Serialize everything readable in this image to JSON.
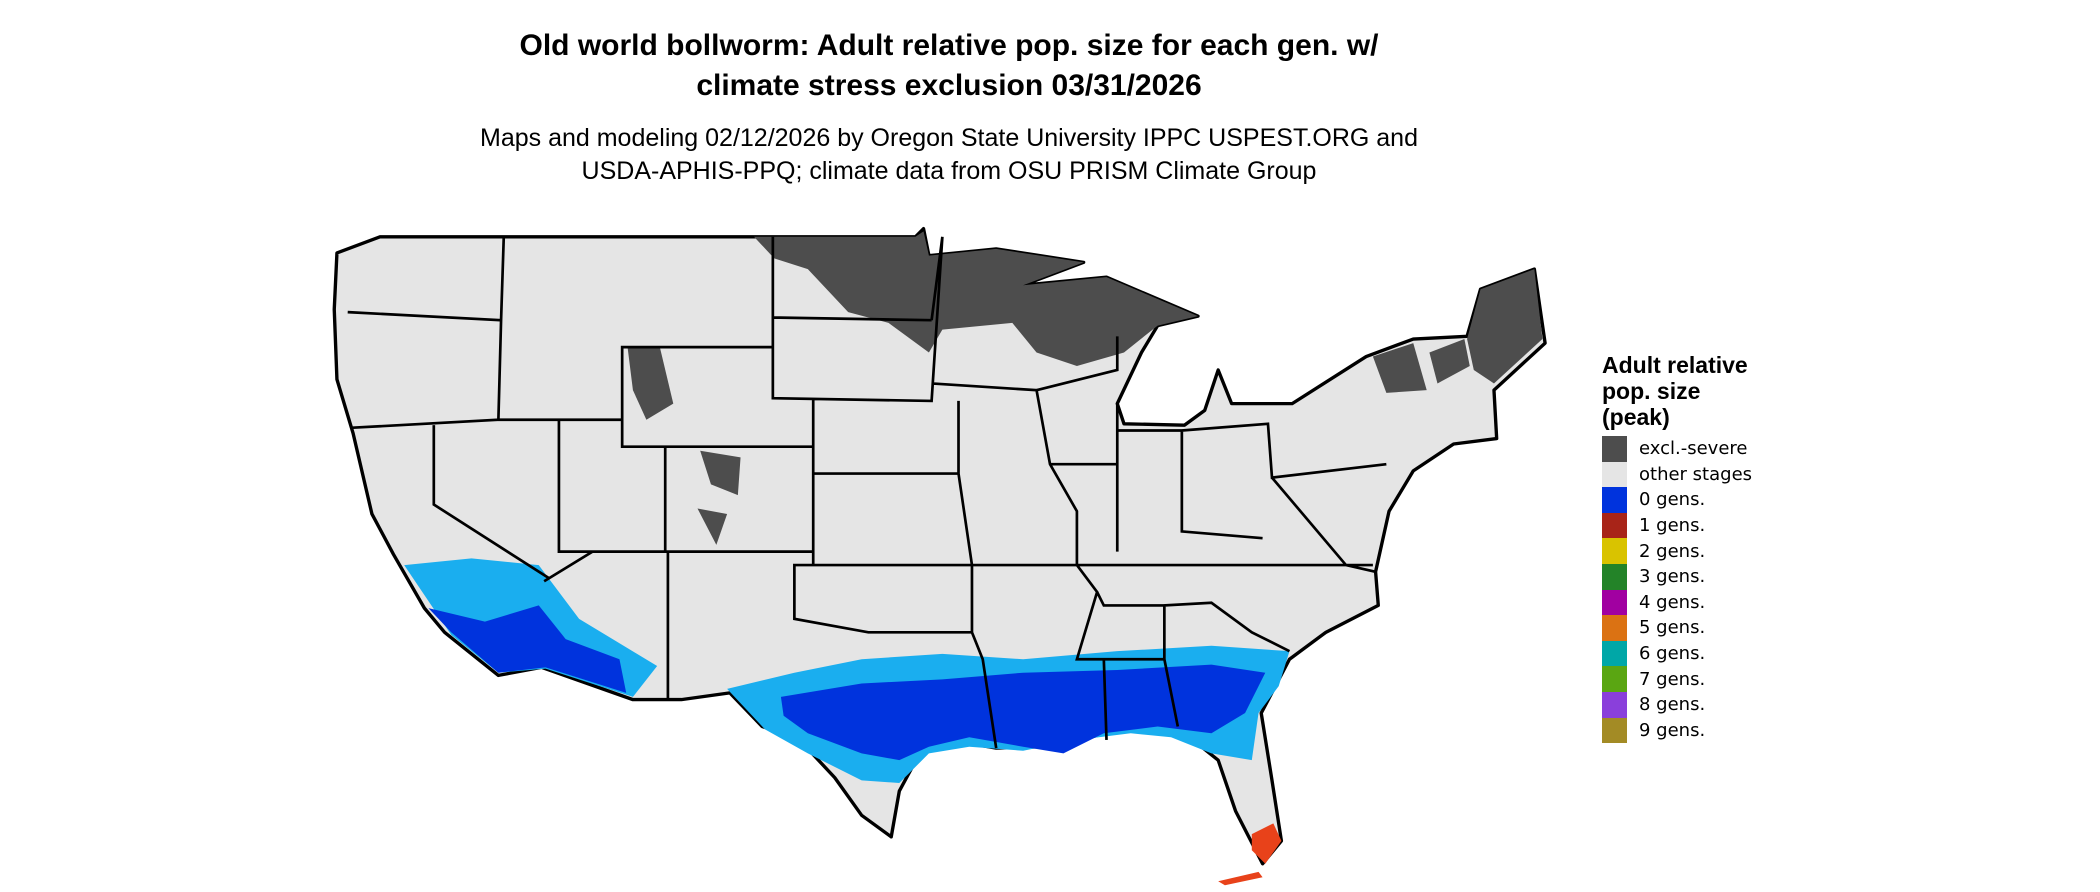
{
  "title_lines": [
    "Old world bollworm: Adult relative pop. size for each gen. w/",
    "climate stress exclusion 03/31/2026"
  ],
  "subtitle_lines": [
    "Maps and modeling 02/12/2026 by Oregon State University IPPC USPEST.ORG and",
    "USDA-APHIS-PPQ; climate data from OSU PRISM Climate Group"
  ],
  "chart_data": {
    "type": "map",
    "region": "contiguous United States",
    "legend": {
      "title": "Adult relative pop. size (peak)",
      "title_lines": [
        "Adult relative",
        "pop. size",
        "(peak)"
      ],
      "placement": "right",
      "items": [
        {
          "label": "excl.-severe",
          "color": "#4d4d4d"
        },
        {
          "label": "other stages",
          "color": "#e5e5e5"
        },
        {
          "label": "0 gens.",
          "color": "#0033dd"
        },
        {
          "label": "1 gens.",
          "color": "#a82418"
        },
        {
          "label": "2 gens.",
          "color": "#d9c300"
        },
        {
          "label": "3 gens.",
          "color": "#238328"
        },
        {
          "label": "4 gens.",
          "color": "#a100a1"
        },
        {
          "label": "5 gens.",
          "color": "#db7213"
        },
        {
          "label": "6 gens.",
          "color": "#00a7a7"
        },
        {
          "label": "7 gens.",
          "color": "#5aa612"
        },
        {
          "label": "8 gens.",
          "color": "#8a3fdb"
        },
        {
          "label": "9 gens.",
          "color": "#a38b25"
        }
      ]
    },
    "colors": {
      "light_blue": "#1aaeef",
      "red_orange": "#e8421a",
      "border": "#000000"
    }
  }
}
